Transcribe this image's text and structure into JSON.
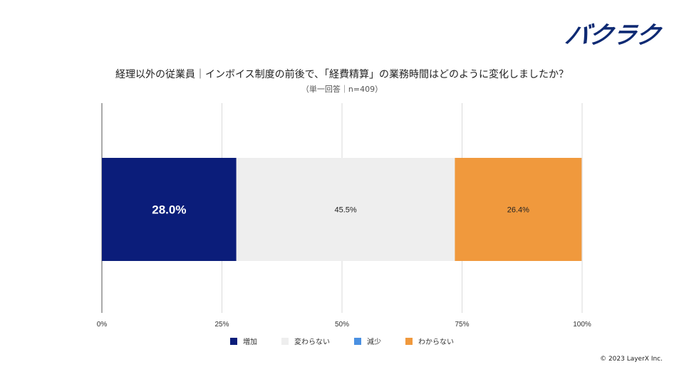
{
  "brand": {
    "logo_text": "バクラク"
  },
  "copyright": "© 2023 LayerX Inc.",
  "chart_data": {
    "type": "bar",
    "orientation": "horizontal-stacked-100",
    "title": "経理以外の従業員｜インボイス制度の前後で、「経費精算」の業務時間はどのように変化しましたか？",
    "subtitle": "（単一回答｜n=409）",
    "xlim": [
      0,
      100
    ],
    "ticks": [
      "0%",
      "25%",
      "50%",
      "75%",
      "100%"
    ],
    "tick_values": [
      0,
      25,
      50,
      75,
      100
    ],
    "series": [
      {
        "name": "増加",
        "value": 28.0,
        "label": "28.0%",
        "color": "#0b1d7a",
        "label_color": "#ffffff"
      },
      {
        "name": "変わらない",
        "value": 45.5,
        "label": "45.5%",
        "color": "#eeeeee",
        "label_color": "#222222"
      },
      {
        "name": "減少",
        "value": 0.0,
        "label": "",
        "color": "#4a90e2",
        "label_color": "#222222"
      },
      {
        "name": "わからない",
        "value": 26.4,
        "label": "26.4%",
        "color": "#f0993d",
        "label_color": "#222222"
      }
    ]
  }
}
